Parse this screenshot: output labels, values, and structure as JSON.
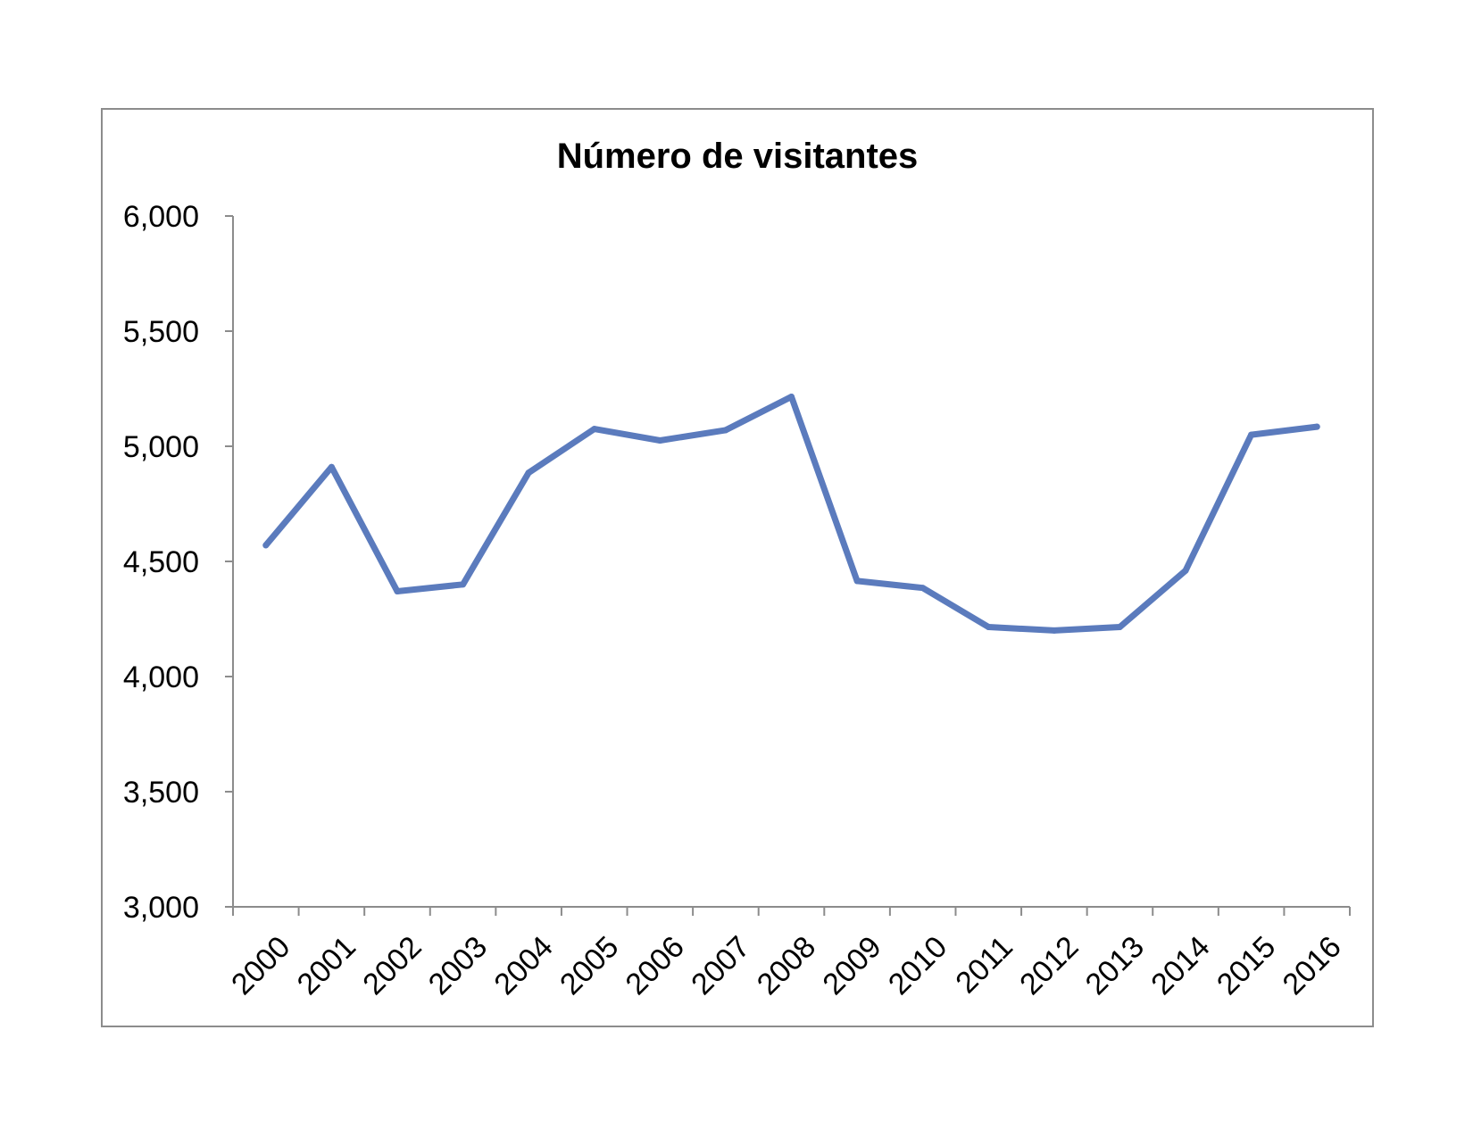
{
  "chart_data": {
    "type": "line",
    "title": "Número de visitantes",
    "xlabel": "",
    "ylabel": "",
    "categories": [
      "2000",
      "2001",
      "2002",
      "2003",
      "2004",
      "2005",
      "2006",
      "2007",
      "2008",
      "2009",
      "2010",
      "2011",
      "2012",
      "2013",
      "2014",
      "2015",
      "2016"
    ],
    "series": [
      {
        "values": [
          4570,
          4910,
          4370,
          4400,
          4885,
          5075,
          5025,
          5070,
          5215,
          4415,
          4385,
          4215,
          4200,
          4215,
          4460,
          5050,
          5085
        ],
        "color": "#5b7bbd"
      }
    ],
    "ylim": [
      3000,
      6000
    ],
    "yticks": [
      "6,000",
      "5,500",
      "5,000",
      "4,500",
      "4,000",
      "3,500",
      "3,000"
    ],
    "ytick_values": [
      6000,
      5500,
      5000,
      4500,
      4000,
      3500,
      3000
    ],
    "grid": false,
    "legend": "none"
  }
}
